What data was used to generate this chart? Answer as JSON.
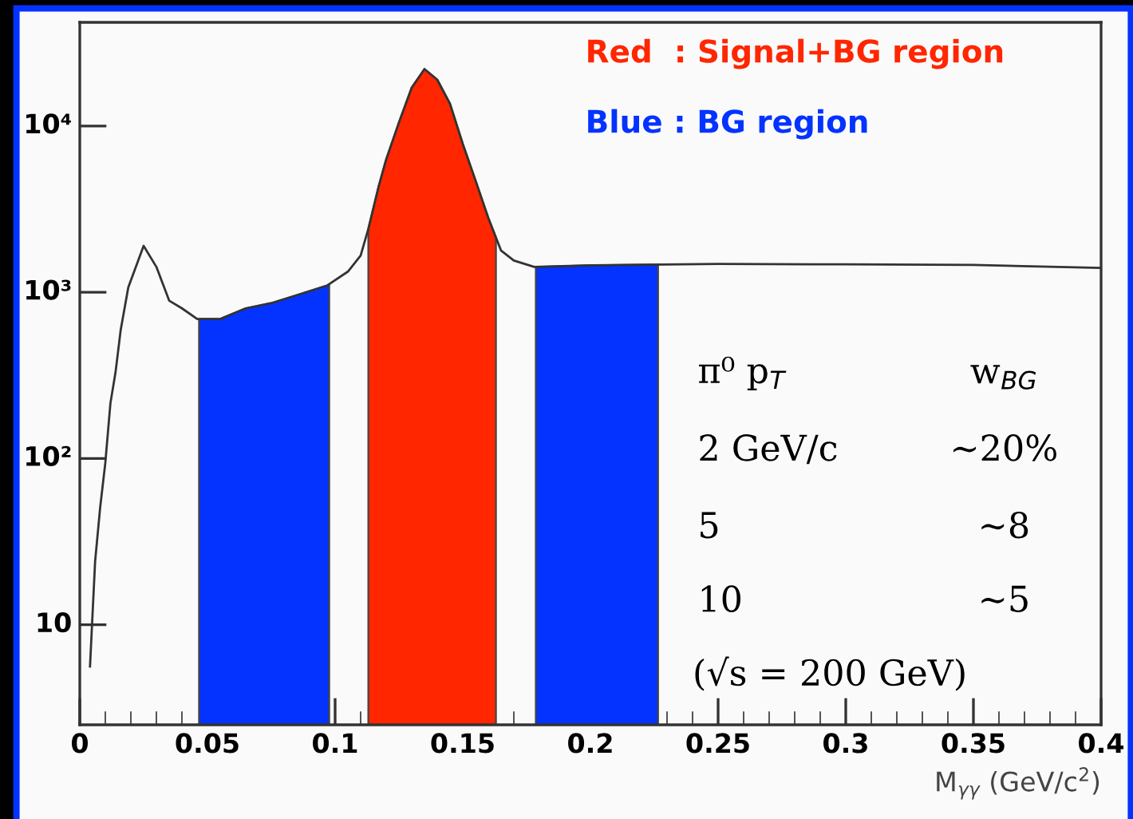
{
  "chart_data": {
    "type": "line",
    "xlabel": "M$_{γγ}$ (GeV/c$^{2}$)",
    "x": [
      0.004,
      0.006,
      0.008,
      0.01,
      0.012,
      0.014,
      0.016,
      0.019,
      0.025,
      0.03,
      0.035,
      0.04,
      0.046,
      0.055,
      0.065,
      0.075,
      0.085,
      0.097,
      0.105,
      0.11,
      0.113,
      0.117,
      0.12,
      0.125,
      0.13,
      0.135,
      0.14,
      0.145,
      0.15,
      0.155,
      0.16,
      0.165,
      0.17,
      0.178,
      0.2,
      0.25,
      0.3,
      0.35,
      0.4
    ],
    "series": [
      {
        "color": "#333333",
        "values": [
          5.6,
          24,
          51,
          94,
          215,
          330,
          590,
          1070,
          1900,
          1420,
          890,
          800,
          690,
          690,
          800,
          860,
          960,
          1100,
          1330,
          1660,
          2400,
          4300,
          6300,
          10500,
          17000,
          22000,
          19000,
          13600,
          7800,
          4700,
          2800,
          1780,
          1550,
          1420,
          1450,
          1480,
          1470,
          1460,
          1400
        ]
      }
    ],
    "log": "y",
    "xlim": [
      0,
      0.4
    ],
    "ylim": [
      2.5,
      42000
    ],
    "xticks": [
      0,
      0.05,
      0.1,
      0.15,
      0.2,
      0.25,
      0.3,
      0.35,
      0.4
    ],
    "yticks": [
      {
        "value": 10,
        "label": "10"
      },
      {
        "value": 100,
        "label": "10²"
      },
      {
        "value": 1000,
        "label": "10³"
      },
      {
        "value": 10000,
        "label": "10⁴"
      }
    ],
    "bands": [
      {
        "axis": "x",
        "from": 0.113,
        "to": 0.163,
        "color": "#ff2600",
        "label": "Red  : Signal+BG region"
      },
      {
        "axis": "x",
        "from": 0.0467,
        "to": 0.0977,
        "color": "#0433ff",
        "label": "Blue : BG region"
      },
      {
        "axis": "x",
        "from": 0.1786,
        "to": 0.2265,
        "color": "#0433ff",
        "label": null
      }
    ],
    "annotations": [
      "π⁰ p$_{T}$",
      "w$_{BG}$",
      "2 GeV/c",
      "~20%",
      "5",
      "~8",
      "10",
      "~5",
      "(√s = 200 GeV)"
    ],
    "grid": false,
    "legend": false
  }
}
